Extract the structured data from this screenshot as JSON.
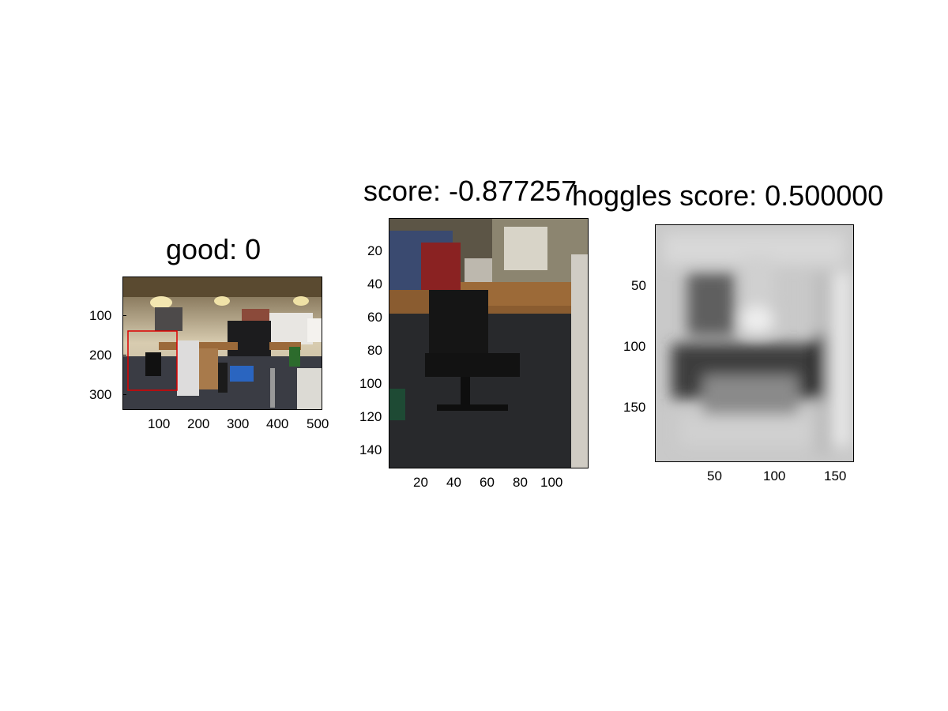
{
  "chart_data": [
    {
      "type": "image",
      "title": "good: 0",
      "xlim": [
        1,
        500
      ],
      "ylim": [
        1,
        333
      ],
      "xticks": [
        100,
        200,
        300,
        400,
        500
      ],
      "yticks": [
        100,
        200,
        300
      ],
      "box": {
        "x": [
          12,
          136
        ],
        "y": [
          135,
          285
        ],
        "color": "#dd0000"
      }
    },
    {
      "type": "image",
      "title": "score: -0.877257",
      "xlim": [
        1,
        120
      ],
      "ylim": [
        1,
        150
      ],
      "xticks": [
        20,
        40,
        60,
        80,
        100
      ],
      "yticks": [
        20,
        40,
        60,
        80,
        100,
        120,
        140
      ]
    },
    {
      "type": "heatmap",
      "title": "hoggles score: 0.500000",
      "colormap": "gray",
      "xlim": [
        1,
        160
      ],
      "ylim": [
        1,
        195
      ],
      "xticks": [
        50,
        100,
        150
      ],
      "yticks": [
        50,
        100,
        150
      ]
    }
  ]
}
